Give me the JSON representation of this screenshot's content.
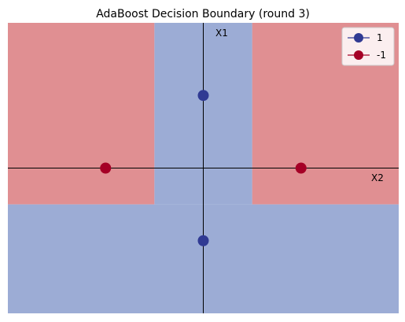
{
  "chart_data": {
    "type": "scatter",
    "title": "AdaBoost Decision Boundary (round 3)",
    "xlabel": "X2",
    "ylabel": "X1",
    "xlim": [
      -2,
      2
    ],
    "ylim": [
      -1.5,
      1.5
    ],
    "grid": false,
    "legend_position": "top-right",
    "regions": [
      {
        "class": "-1",
        "x": [
          -2,
          -0.5
        ],
        "y": [
          -0.375,
          1.5
        ],
        "color": "#e08f92"
      },
      {
        "class": "-1",
        "x": [
          0.5,
          2
        ],
        "y": [
          -0.375,
          1.5
        ],
        "color": "#e08f92"
      },
      {
        "class": "1",
        "x": [
          -0.5,
          0.5
        ],
        "y": [
          -0.375,
          1.5
        ],
        "color": "#9cacd5"
      },
      {
        "class": "1",
        "x": [
          -2,
          2
        ],
        "y": [
          -1.5,
          -0.375
        ],
        "color": "#9cacd5"
      }
    ],
    "series": [
      {
        "name": "1",
        "color": "#303a93",
        "points": [
          {
            "x": 0,
            "y": 0.75
          },
          {
            "x": 0,
            "y": -0.75
          }
        ]
      },
      {
        "name": "-1",
        "color": "#a50026",
        "points": [
          {
            "x": -1,
            "y": 0
          },
          {
            "x": 1,
            "y": 0
          }
        ]
      }
    ]
  }
}
